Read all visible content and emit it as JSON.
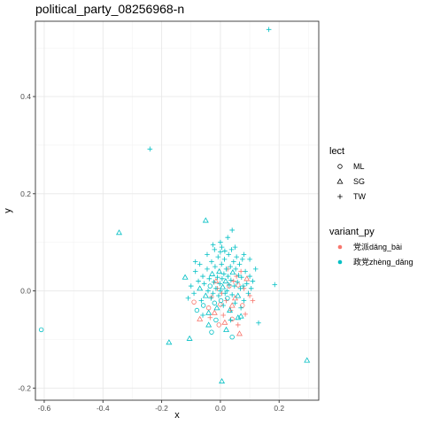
{
  "chart_data": {
    "type": "scatter",
    "title": "political_party_08256968-n",
    "xlabel": "x",
    "ylabel": "y",
    "xlim": [
      -0.63,
      0.335
    ],
    "ylim": [
      -0.225,
      0.555
    ],
    "x_ticks": [
      -0.6,
      -0.4,
      -0.2,
      0.0,
      0.2
    ],
    "x_tick_labels": [
      "-0.6",
      "-0.4",
      "-0.2",
      "0.0",
      "0.2"
    ],
    "y_ticks": [
      -0.2,
      0.0,
      0.2,
      0.4
    ],
    "y_tick_labels": [
      "-0.2",
      "0.0",
      "0.2",
      "0.4"
    ],
    "grid": true,
    "legend_position": "right",
    "legends": [
      {
        "title": "lect",
        "kind": "shape",
        "entries": [
          {
            "label": "ML",
            "shape": "circle"
          },
          {
            "label": "SG",
            "shape": "triangle"
          },
          {
            "label": "TW",
            "shape": "plus"
          }
        ]
      },
      {
        "title": "variant_py",
        "kind": "color",
        "entries": [
          {
            "label": "党派dǎng_bài",
            "color": "#F8766D"
          },
          {
            "label": "政党zhèng_dǎng",
            "color": "#00BFC4"
          }
        ]
      }
    ],
    "series": [
      {
        "name": "党派dǎng_bài",
        "color": "#F8766D",
        "points": [
          {
            "x": -0.09,
            "y": -0.023,
            "lect": "ML"
          },
          {
            "x": -0.07,
            "y": -0.058,
            "lect": "SG"
          },
          {
            "x": -0.04,
            "y": -0.035,
            "lect": "ML"
          },
          {
            "x": -0.03,
            "y": -0.012,
            "lect": "TW"
          },
          {
            "x": -0.02,
            "y": -0.045,
            "lect": "SG"
          },
          {
            "x": -0.01,
            "y": 0.005,
            "lect": "TW"
          },
          {
            "x": 0.0,
            "y": -0.028,
            "lect": "ML"
          },
          {
            "x": 0.01,
            "y": -0.05,
            "lect": "TW"
          },
          {
            "x": 0.015,
            "y": -0.065,
            "lect": "SG"
          },
          {
            "x": 0.02,
            "y": -0.02,
            "lect": "TW"
          },
          {
            "x": 0.03,
            "y": 0.01,
            "lect": "ML"
          },
          {
            "x": 0.035,
            "y": -0.04,
            "lect": "TW"
          },
          {
            "x": 0.04,
            "y": -0.058,
            "lect": "ML"
          },
          {
            "x": 0.045,
            "y": 0.02,
            "lect": "TW"
          },
          {
            "x": 0.05,
            "y": -0.015,
            "lect": "SG"
          },
          {
            "x": 0.055,
            "y": 0.03,
            "lect": "TW"
          },
          {
            "x": 0.06,
            "y": -0.07,
            "lect": "TW"
          },
          {
            "x": 0.065,
            "y": -0.088,
            "lect": "SG"
          },
          {
            "x": 0.07,
            "y": 0.04,
            "lect": "TW"
          },
          {
            "x": 0.075,
            "y": -0.03,
            "lect": "ML"
          },
          {
            "x": 0.08,
            "y": 0.005,
            "lect": "TW"
          },
          {
            "x": 0.085,
            "y": -0.048,
            "lect": "TW"
          },
          {
            "x": 0.09,
            "y": 0.025,
            "lect": "SG"
          },
          {
            "x": 0.1,
            "y": -0.01,
            "lect": "TW"
          },
          {
            "x": 0.11,
            "y": -0.02,
            "lect": "TW"
          },
          {
            "x": -0.005,
            "y": -0.07,
            "lect": "ML"
          },
          {
            "x": 0.025,
            "y": 0.045,
            "lect": "TW"
          },
          {
            "x": -0.015,
            "y": 0.02,
            "lect": "SG"
          },
          {
            "x": 0.005,
            "y": -0.005,
            "lect": "TW"
          },
          {
            "x": 0.04,
            "y": -0.03,
            "lect": "SG"
          },
          {
            "x": -0.035,
            "y": -0.055,
            "lect": "TW"
          },
          {
            "x": 0.06,
            "y": 0.012,
            "lect": "ML"
          }
        ]
      },
      {
        "name": "政党zhèng_dǎng",
        "color": "#00BFC4",
        "points": [
          {
            "x": 0.165,
            "y": 0.538,
            "lect": "TW"
          },
          {
            "x": -0.24,
            "y": 0.292,
            "lect": "TW"
          },
          {
            "x": -0.345,
            "y": 0.12,
            "lect": "SG"
          },
          {
            "x": -0.61,
            "y": -0.08,
            "lect": "ML"
          },
          {
            "x": -0.175,
            "y": -0.106,
            "lect": "SG"
          },
          {
            "x": -0.105,
            "y": -0.098,
            "lect": "SG"
          },
          {
            "x": 0.005,
            "y": -0.186,
            "lect": "SG"
          },
          {
            "x": 0.295,
            "y": -0.143,
            "lect": "SG"
          },
          {
            "x": 0.185,
            "y": 0.013,
            "lect": "TW"
          },
          {
            "x": 0.13,
            "y": -0.066,
            "lect": "TW"
          },
          {
            "x": 0.1,
            "y": 0.065,
            "lect": "TW"
          },
          {
            "x": -0.05,
            "y": 0.145,
            "lect": "SG"
          },
          {
            "x": 0.04,
            "y": 0.125,
            "lect": "TW"
          },
          {
            "x": 0.005,
            "y": 0.09,
            "lect": "TW"
          },
          {
            "x": 0.0,
            "y": 0.08,
            "lect": "TW"
          },
          {
            "x": -0.12,
            "y": 0.028,
            "lect": "SG"
          },
          {
            "x": -0.1,
            "y": 0.01,
            "lect": "TW"
          },
          {
            "x": -0.09,
            "y": -0.005,
            "lect": "TW"
          },
          {
            "x": -0.085,
            "y": 0.04,
            "lect": "TW"
          },
          {
            "x": -0.08,
            "y": -0.04,
            "lect": "ML"
          },
          {
            "x": -0.075,
            "y": 0.02,
            "lect": "TW"
          },
          {
            "x": -0.07,
            "y": 0.005,
            "lect": "SG"
          },
          {
            "x": -0.065,
            "y": -0.02,
            "lect": "TW"
          },
          {
            "x": -0.06,
            "y": 0.03,
            "lect": "TW"
          },
          {
            "x": -0.058,
            "y": -0.03,
            "lect": "ML"
          },
          {
            "x": -0.055,
            "y": 0.015,
            "lect": "TW"
          },
          {
            "x": -0.05,
            "y": -0.01,
            "lect": "SG"
          },
          {
            "x": -0.045,
            "y": 0.045,
            "lect": "TW"
          },
          {
            "x": -0.042,
            "y": 0.0,
            "lect": "TW"
          },
          {
            "x": -0.04,
            "y": -0.045,
            "lect": "SG"
          },
          {
            "x": -0.038,
            "y": 0.025,
            "lect": "TW"
          },
          {
            "x": -0.035,
            "y": 0.01,
            "lect": "ML"
          },
          {
            "x": -0.032,
            "y": -0.015,
            "lect": "TW"
          },
          {
            "x": -0.03,
            "y": 0.06,
            "lect": "TW"
          },
          {
            "x": -0.028,
            "y": 0.035,
            "lect": "SG"
          },
          {
            "x": -0.025,
            "y": -0.005,
            "lect": "TW"
          },
          {
            "x": -0.022,
            "y": 0.018,
            "lect": "TW"
          },
          {
            "x": -0.02,
            "y": -0.025,
            "lect": "ML"
          },
          {
            "x": -0.018,
            "y": 0.05,
            "lect": "TW"
          },
          {
            "x": -0.015,
            "y": 0.005,
            "lect": "TW"
          },
          {
            "x": -0.012,
            "y": -0.035,
            "lect": "SG"
          },
          {
            "x": -0.01,
            "y": 0.028,
            "lect": "TW"
          },
          {
            "x": -0.008,
            "y": 0.07,
            "lect": "TW"
          },
          {
            "x": -0.006,
            "y": -0.01,
            "lect": "TW"
          },
          {
            "x": -0.004,
            "y": 0.04,
            "lect": "SG"
          },
          {
            "x": -0.002,
            "y": 0.015,
            "lect": "TW"
          },
          {
            "x": 0.0,
            "y": 0.0,
            "lect": "TW"
          },
          {
            "x": 0.002,
            "y": -0.02,
            "lect": "ML"
          },
          {
            "x": 0.004,
            "y": 0.055,
            "lect": "TW"
          },
          {
            "x": 0.006,
            "y": 0.025,
            "lect": "TW"
          },
          {
            "x": 0.008,
            "y": 0.008,
            "lect": "SG"
          },
          {
            "x": 0.01,
            "y": -0.03,
            "lect": "TW"
          },
          {
            "x": 0.012,
            "y": 0.035,
            "lect": "TW"
          },
          {
            "x": 0.014,
            "y": 0.065,
            "lect": "TW"
          },
          {
            "x": 0.016,
            "y": -0.005,
            "lect": "TW"
          },
          {
            "x": 0.018,
            "y": 0.02,
            "lect": "SG"
          },
          {
            "x": 0.02,
            "y": 0.045,
            "lect": "TW"
          },
          {
            "x": 0.022,
            "y": 0.0,
            "lect": "TW"
          },
          {
            "x": 0.024,
            "y": -0.015,
            "lect": "ML"
          },
          {
            "x": 0.026,
            "y": 0.03,
            "lect": "TW"
          },
          {
            "x": 0.028,
            "y": 0.075,
            "lect": "TW"
          },
          {
            "x": 0.03,
            "y": 0.012,
            "lect": "TW"
          },
          {
            "x": 0.032,
            "y": -0.04,
            "lect": "SG"
          },
          {
            "x": 0.034,
            "y": 0.05,
            "lect": "TW"
          },
          {
            "x": 0.036,
            "y": 0.022,
            "lect": "TW"
          },
          {
            "x": 0.038,
            "y": 0.085,
            "lect": "TW"
          },
          {
            "x": 0.04,
            "y": -0.008,
            "lect": "TW"
          },
          {
            "x": 0.042,
            "y": 0.038,
            "lect": "SG"
          },
          {
            "x": 0.045,
            "y": 0.06,
            "lect": "TW"
          },
          {
            "x": 0.048,
            "y": 0.01,
            "lect": "TW"
          },
          {
            "x": 0.05,
            "y": -0.025,
            "lect": "TW"
          },
          {
            "x": 0.052,
            "y": 0.045,
            "lect": "TW"
          },
          {
            "x": 0.055,
            "y": 0.07,
            "lect": "TW"
          },
          {
            "x": 0.058,
            "y": 0.018,
            "lect": "TW"
          },
          {
            "x": 0.06,
            "y": -0.01,
            "lect": "SG"
          },
          {
            "x": 0.062,
            "y": 0.032,
            "lect": "TW"
          },
          {
            "x": 0.065,
            "y": 0.055,
            "lect": "TW"
          },
          {
            "x": 0.068,
            "y": 0.005,
            "lect": "TW"
          },
          {
            "x": 0.07,
            "y": -0.052,
            "lect": "SG"
          },
          {
            "x": 0.072,
            "y": 0.028,
            "lect": "TW"
          },
          {
            "x": 0.075,
            "y": 0.065,
            "lect": "TW"
          },
          {
            "x": 0.078,
            "y": 0.01,
            "lect": "TW"
          },
          {
            "x": 0.08,
            "y": -0.02,
            "lect": "TW"
          },
          {
            "x": 0.085,
            "y": 0.04,
            "lect": "TW"
          },
          {
            "x": 0.09,
            "y": 0.015,
            "lect": "TW"
          },
          {
            "x": 0.095,
            "y": -0.005,
            "lect": "TW"
          },
          {
            "x": 0.1,
            "y": 0.03,
            "lect": "TW"
          },
          {
            "x": 0.105,
            "y": 0.005,
            "lect": "TW"
          },
          {
            "x": 0.11,
            "y": 0.02,
            "lect": "TW"
          },
          {
            "x": -0.04,
            "y": -0.07,
            "lect": "SG"
          },
          {
            "x": -0.03,
            "y": -0.085,
            "lect": "ML"
          },
          {
            "x": 0.02,
            "y": -0.08,
            "lect": "SG"
          },
          {
            "x": 0.04,
            "y": -0.095,
            "lect": "ML"
          },
          {
            "x": 0.06,
            "y": -0.055,
            "lect": "SG"
          },
          {
            "x": -0.06,
            "y": -0.05,
            "lect": "TW"
          },
          {
            "x": -0.07,
            "y": 0.055,
            "lect": "TW"
          },
          {
            "x": 0.0,
            "y": 0.1,
            "lect": "TW"
          },
          {
            "x": 0.05,
            "y": 0.09,
            "lect": "TW"
          },
          {
            "x": 0.08,
            "y": 0.075,
            "lect": "TW"
          },
          {
            "x": -0.02,
            "y": 0.085,
            "lect": "TW"
          },
          {
            "x": 0.025,
            "y": 0.11,
            "lect": "TW"
          },
          {
            "x": -0.045,
            "y": 0.075,
            "lect": "TW"
          },
          {
            "x": 0.035,
            "y": -0.06,
            "lect": "TW"
          },
          {
            "x": -0.015,
            "y": -0.06,
            "lect": "ML"
          },
          {
            "x": 0.015,
            "y": 0.082,
            "lect": "TW"
          },
          {
            "x": -0.085,
            "y": 0.06,
            "lect": "TW"
          },
          {
            "x": 0.12,
            "y": 0.045,
            "lect": "TW"
          },
          {
            "x": -0.11,
            "y": -0.015,
            "lect": "TW"
          },
          {
            "x": 0.07,
            "y": -0.035,
            "lect": "TW"
          },
          {
            "x": -0.025,
            "y": 0.095,
            "lect": "TW"
          }
        ]
      }
    ]
  }
}
